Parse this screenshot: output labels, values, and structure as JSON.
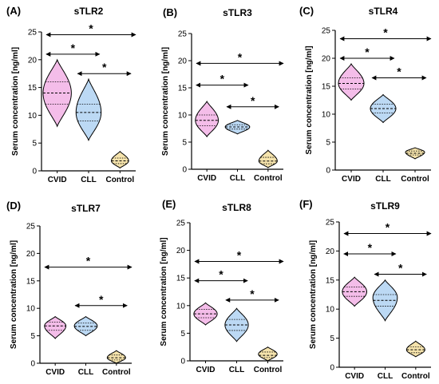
{
  "colors": {
    "CVID": "#f4bde9",
    "CLL": "#bcd9f4",
    "Control": "#f5e3ac",
    "outline": "#000000"
  },
  "chart_data": [
    {
      "type": "violin",
      "letter": "(A)",
      "title": "sTLR2",
      "ylabel": "Serum concentration [ng/ml]",
      "ylim": [
        0,
        25
      ],
      "yticks": [
        "0",
        "5",
        "10",
        "15",
        "20",
        "25"
      ],
      "categories": [
        "CVID",
        "CLL",
        "Control"
      ],
      "series": [
        {
          "category": "CVID",
          "min": 8.0,
          "max": 20.0,
          "median": 14.0,
          "q1": 12.0,
          "q3": 16.0,
          "mode": 14.0,
          "width": 0.9
        },
        {
          "category": "CLL",
          "min": 5.5,
          "max": 16.5,
          "median": 10.5,
          "q1": 9.0,
          "q3": 12.0,
          "mode": 10.5,
          "width": 0.8
        },
        {
          "category": "Control",
          "min": 0.5,
          "max": 3.5,
          "median": 1.8,
          "q1": 1.3,
          "q3": 2.3,
          "mode": 1.8,
          "width": 0.55
        }
      ],
      "comparisons": [
        {
          "from": 0,
          "to": 2,
          "y": 24.5,
          "label": "*"
        },
        {
          "from": 0,
          "to": 1,
          "y": 21.0,
          "label": "*"
        },
        {
          "from": 1,
          "to": 2,
          "y": 17.5,
          "label": "*"
        }
      ]
    },
    {
      "type": "violin",
      "letter": "(B)",
      "title": "sTLR3",
      "ylabel": "Serum concentration [ng/ml]",
      "ylim": [
        0,
        25
      ],
      "yticks": [
        "0",
        "5",
        "10",
        "15",
        "20",
        "25"
      ],
      "categories": [
        "CVID",
        "CLL",
        "Control"
      ],
      "series": [
        {
          "category": "CVID",
          "min": 6.0,
          "max": 12.5,
          "median": 9.0,
          "q1": 8.0,
          "q3": 10.0,
          "mode": 9.0,
          "width": 0.75
        },
        {
          "category": "CLL",
          "min": 6.5,
          "max": 9.0,
          "median": 7.8,
          "q1": 7.4,
          "q3": 8.2,
          "mode": 7.8,
          "width": 0.8
        },
        {
          "category": "Control",
          "min": 0.3,
          "max": 3.5,
          "median": 1.5,
          "q1": 1.0,
          "q3": 2.2,
          "mode": 1.5,
          "width": 0.6
        }
      ],
      "comparisons": [
        {
          "from": 0,
          "to": 2,
          "y": 19.5,
          "label": "*"
        },
        {
          "from": 0,
          "to": 1,
          "y": 15.5,
          "label": "*"
        },
        {
          "from": 1,
          "to": 2,
          "y": 11.5,
          "label": "*"
        }
      ]
    },
    {
      "type": "violin",
      "letter": "(C)",
      "title": "sTLR4",
      "ylabel": "Serum concentration [ng/ml]",
      "ylim": [
        0,
        25
      ],
      "yticks": [
        "0",
        "5",
        "10",
        "15",
        "20",
        "25"
      ],
      "categories": [
        "CVID",
        "CLL",
        "Control"
      ],
      "series": [
        {
          "category": "CVID",
          "min": 12.5,
          "max": 19.0,
          "median": 15.5,
          "q1": 14.5,
          "q3": 16.5,
          "mode": 15.5,
          "width": 0.8
        },
        {
          "category": "CLL",
          "min": 8.5,
          "max": 13.5,
          "median": 11.0,
          "q1": 10.2,
          "q3": 11.8,
          "mode": 11.0,
          "width": 0.8
        },
        {
          "category": "Control",
          "min": 2.0,
          "max": 4.0,
          "median": 3.0,
          "q1": 2.7,
          "q3": 3.4,
          "mode": 3.2,
          "width": 0.6
        }
      ],
      "comparisons": [
        {
          "from": 0,
          "to": 2,
          "y": 23.5,
          "label": "*"
        },
        {
          "from": 0,
          "to": 1,
          "y": 20.0,
          "label": "*"
        },
        {
          "from": 1,
          "to": 2,
          "y": 16.5,
          "label": "*"
        }
      ]
    },
    {
      "type": "violin",
      "letter": "(D)",
      "title": "sTLR7",
      "ylabel": "Serum concentration [ng/ml]",
      "ylim": [
        0,
        25
      ],
      "yticks": [
        "0",
        "5",
        "10",
        "15",
        "20",
        "25"
      ],
      "categories": [
        "CVID",
        "CLL",
        "Control"
      ],
      "series": [
        {
          "category": "CVID",
          "min": 4.5,
          "max": 8.5,
          "median": 6.8,
          "q1": 6.0,
          "q3": 7.5,
          "mode": 6.8,
          "width": 0.7
        },
        {
          "category": "CLL",
          "min": 5.0,
          "max": 8.5,
          "median": 6.7,
          "q1": 6.0,
          "q3": 7.3,
          "mode": 6.8,
          "width": 0.75
        },
        {
          "category": "Control",
          "min": 0.0,
          "max": 2.3,
          "median": 1.0,
          "q1": 0.6,
          "q3": 1.5,
          "mode": 1.0,
          "width": 0.6
        }
      ],
      "comparisons": [
        {
          "from": 0,
          "to": 2,
          "y": 17.5,
          "label": "*"
        },
        {
          "from": 1,
          "to": 2,
          "y": 10.5,
          "label": "*"
        }
      ]
    },
    {
      "type": "violin",
      "letter": "(E)",
      "title": "sTLR8",
      "ylabel": "Serum concentration [ng/ml]",
      "ylim": [
        0,
        25
      ],
      "yticks": [
        "0",
        "5",
        "10",
        "15",
        "20",
        "25"
      ],
      "categories": [
        "CVID",
        "CLL",
        "Control"
      ],
      "series": [
        {
          "category": "CVID",
          "min": 6.5,
          "max": 10.5,
          "median": 8.5,
          "q1": 7.8,
          "q3": 9.3,
          "mode": 8.5,
          "width": 0.75
        },
        {
          "category": "CLL",
          "min": 3.5,
          "max": 9.5,
          "median": 6.5,
          "q1": 5.5,
          "q3": 7.5,
          "mode": 6.5,
          "width": 0.75
        },
        {
          "category": "Control",
          "min": 0.0,
          "max": 2.5,
          "median": 1.0,
          "q1": 0.6,
          "q3": 1.6,
          "mode": 1.2,
          "width": 0.6
        }
      ],
      "comparisons": [
        {
          "from": 0,
          "to": 2,
          "y": 18.0,
          "label": "*"
        },
        {
          "from": 0,
          "to": 1,
          "y": 14.5,
          "label": "*"
        },
        {
          "from": 1,
          "to": 2,
          "y": 11.0,
          "label": "*"
        }
      ]
    },
    {
      "type": "violin",
      "letter": "(F)",
      "title": "sTLR9",
      "ylabel": "Serum concentration [ng/ml]",
      "ylim": [
        0,
        25
      ],
      "yticks": [
        "0",
        "5",
        "10",
        "15",
        "20",
        "25"
      ],
      "categories": [
        "CVID",
        "CLL",
        "Control"
      ],
      "series": [
        {
          "category": "CVID",
          "min": 10.5,
          "max": 15.5,
          "median": 13.0,
          "q1": 12.2,
          "q3": 13.8,
          "mode": 13.0,
          "width": 0.8
        },
        {
          "category": "CLL",
          "min": 8.0,
          "max": 15.0,
          "median": 11.5,
          "q1": 10.5,
          "q3": 12.5,
          "mode": 12.0,
          "width": 0.8
        },
        {
          "category": "Control",
          "min": 1.8,
          "max": 4.5,
          "median": 3.0,
          "q1": 2.5,
          "q3": 3.5,
          "mode": 3.0,
          "width": 0.6
        }
      ],
      "comparisons": [
        {
          "from": 0,
          "to": 2,
          "y": 23.0,
          "label": "*"
        },
        {
          "from": 0,
          "to": 1,
          "y": 19.5,
          "label": "*"
        },
        {
          "from": 1,
          "to": 2,
          "y": 16.0,
          "label": "*"
        }
      ]
    }
  ]
}
